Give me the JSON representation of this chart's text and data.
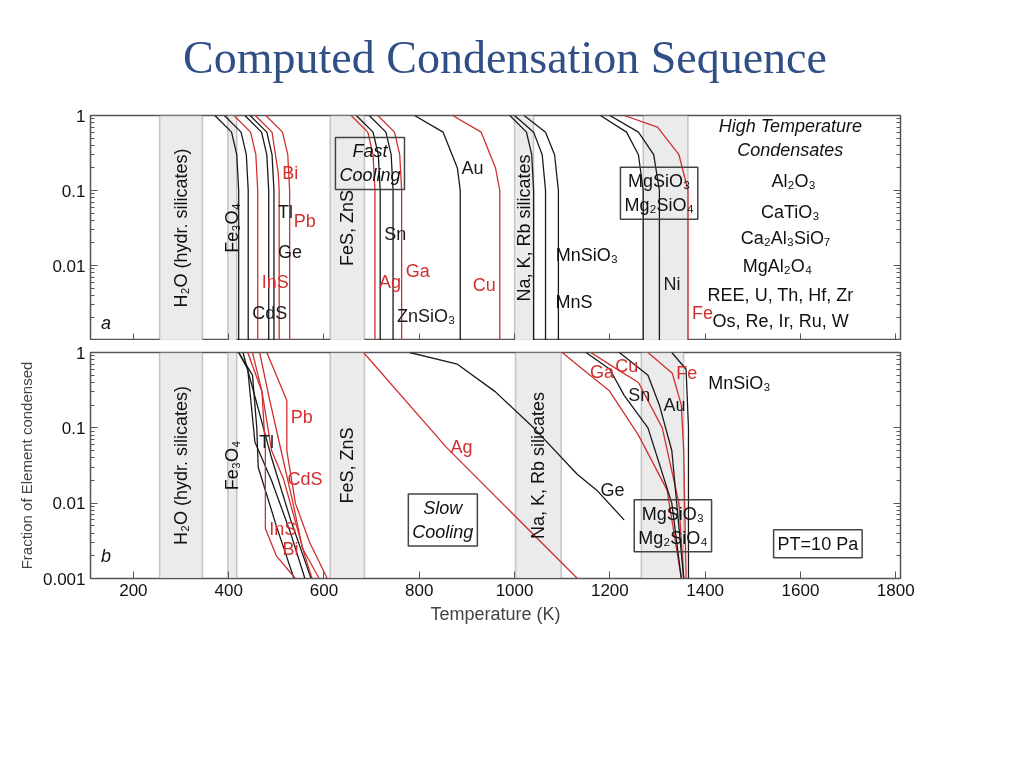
{
  "chart_data": [
    {
      "type": "line",
      "title": "Computed Condensation Sequence",
      "log": "y",
      "tick_labels": "y",
      "grid": false,
      "xlim": [
        110,
        1810
      ],
      "xticks": [
        200,
        400,
        600,
        800,
        1000,
        1200,
        1400,
        1600,
        1800
      ],
      "ylim": [
        0.001,
        1
      ],
      "yticks": [
        0.01,
        0.1,
        1
      ],
      "bands": [
        {
          "axis": "x",
          "from": 255,
          "to": 345,
          "label": "H₂O (hydr. silicates)",
          "color": "#ebebeb"
        },
        {
          "axis": "x",
          "from": 398,
          "to": 417,
          "label": "Fe₃O₄",
          "color": "#ebebeb"
        },
        {
          "axis": "x",
          "from": 613,
          "to": 685,
          "label": "FeS, ZnS",
          "color": "#ebebeb"
        },
        {
          "axis": "x",
          "from": 1000,
          "to": 1040,
          "label": "Na, K, Rb silicates",
          "color": "#ebebeb"
        },
        {
          "axis": "x",
          "from": 1270,
          "to": 1364,
          "label": null,
          "color": "#ebebeb"
        }
      ],
      "series": [
        {
          "color": "#1a1a1a",
          "x": [
            371,
            406,
            417,
            421,
            421
          ],
          "values": [
            1,
            0.6,
            0.3,
            0.1,
            0.001
          ]
        },
        {
          "color": "#1a1a1a",
          "x": [
            391,
            426,
            437,
            441,
            441
          ],
          "values": [
            1,
            0.6,
            0.3,
            0.1,
            0.001
          ]
        },
        {
          "color": "#d03030",
          "x": [
            411,
            446,
            457,
            461,
            461
          ],
          "values": [
            1,
            0.6,
            0.3,
            0.1,
            0.001
          ]
        },
        {
          "color": "#1a1a1a",
          "x": [
            434,
            469,
            480,
            484,
            484
          ],
          "values": [
            1,
            0.6,
            0.3,
            0.1,
            0.001
          ]
        },
        {
          "color": "#1a1a1a",
          "x": [
            445,
            480,
            491,
            495,
            495
          ],
          "values": [
            1,
            0.6,
            0.3,
            0.1,
            0.001
          ]
        },
        {
          "color": "#d03030",
          "x": [
            456,
            491,
            504,
            506,
            506
          ],
          "values": [
            1,
            0.6,
            0.17,
            0.1,
            0.001
          ]
        },
        {
          "color": "#d03030",
          "x": [
            478,
            513,
            524,
            528,
            528
          ],
          "values": [
            1,
            0.6,
            0.3,
            0.1,
            0.001
          ]
        },
        {
          "color": "#d03030",
          "x": [
            657,
            692,
            703,
            707,
            707
          ],
          "values": [
            1,
            0.6,
            0.3,
            0.1,
            0.001
          ]
        },
        {
          "color": "#1a1a1a",
          "x": [
            668,
            703,
            714,
            718,
            718
          ],
          "values": [
            1,
            0.6,
            0.3,
            0.1,
            0.001
          ]
        },
        {
          "color": "#1a1a1a",
          "x": [
            695,
            730,
            741,
            745,
            745
          ],
          "values": [
            1,
            0.6,
            0.3,
            0.1,
            0.001
          ]
        },
        {
          "color": "#d03030",
          "x": [
            713,
            748,
            759,
            763,
            763
          ],
          "values": [
            1,
            0.6,
            0.3,
            0.1,
            0.001
          ]
        },
        {
          "color": "#1a1a1a",
          "x": [
            790,
            850,
            880,
            886,
            886
          ],
          "values": [
            1,
            0.6,
            0.2,
            0.1,
            0.001
          ]
        },
        {
          "color": "#d03030",
          "x": [
            870,
            930,
            960,
            969,
            969
          ],
          "values": [
            1,
            0.6,
            0.2,
            0.1,
            0.001
          ]
        },
        {
          "color": "#1a1a1a",
          "x": [
            990,
            1025,
            1036,
            1040,
            1040
          ],
          "values": [
            1,
            0.6,
            0.3,
            0.1,
            0.001
          ]
        },
        {
          "color": "#1a1a1a",
          "x": [
            1000,
            1040,
            1058,
            1065,
            1065
          ],
          "values": [
            1,
            0.6,
            0.3,
            0.1,
            0.001
          ]
        },
        {
          "color": "#1a1a1a",
          "x": [
            1020,
            1065,
            1084,
            1092,
            1092
          ],
          "values": [
            1,
            0.6,
            0.3,
            0.1,
            0.001
          ]
        },
        {
          "color": "#1a1a1a",
          "x": [
            1180,
            1235,
            1260,
            1270,
            1270
          ],
          "values": [
            1,
            0.6,
            0.3,
            0.1,
            0.001
          ]
        },
        {
          "color": "#1a1a1a",
          "x": [
            1200,
            1260,
            1292,
            1304,
            1304
          ],
          "values": [
            1,
            0.6,
            0.3,
            0.1,
            0.001
          ]
        },
        {
          "color": "#d03030",
          "x": [
            1230,
            1300,
            1345,
            1364,
            1364
          ],
          "values": [
            1,
            0.7,
            0.3,
            0.1,
            0.001
          ]
        }
      ],
      "annotations": [
        {
          "text": "Bi",
          "x": 504,
          "y": 0.17
        },
        {
          "text": "Tl",
          "x": 495,
          "y": 0.052
        },
        {
          "text": "Pb",
          "x": 528,
          "y": 0.039
        },
        {
          "text": "Ge",
          "x": 495,
          "y": 0.015
        },
        {
          "text": "InS",
          "x": 461,
          "y": 0.006
        },
        {
          "text": "CdS",
          "x": 441,
          "y": 0.0023
        },
        {
          "text": "Sn",
          "x": 718,
          "y": 0.026
        },
        {
          "text": "Ag",
          "x": 707,
          "y": 0.006
        },
        {
          "text": "Ga",
          "x": 763,
          "y": 0.0085
        },
        {
          "text": "ZnSiO₃",
          "x": 745,
          "y": 0.0021
        },
        {
          "text": "Au",
          "x": 880,
          "y": 0.2
        },
        {
          "text": "Cu",
          "x": 969,
          "y": 0.0055
        },
        {
          "text": "Ni",
          "x": 1304,
          "y": 0.0056
        },
        {
          "text": "Fe",
          "x": 1364,
          "y": 0.0023
        },
        "Fast\nCooling",
        "MgSiO₃\nMg₂SiO₄",
        "MnSiO₃",
        "MnS",
        "High Temperature\nCondensates",
        "Al₂O₃",
        "CaTiO₃",
        "Ca₂Al₃SiO₇",
        "MgAl₂O₄",
        "REE, U, Th, Hf, Zr",
        "Os, Re, Ir, Ru, W",
        "a"
      ]
    },
    {
      "type": "line",
      "log": "y",
      "grid": false,
      "xlabel": "Temperature (K)",
      "ylabel": "Fraction of Element condensed",
      "xlim": [
        110,
        1810
      ],
      "xticks": [
        200,
        400,
        600,
        800,
        1000,
        1200,
        1400,
        1600,
        1800
      ],
      "ylim": [
        0.001,
        1
      ],
      "yticks": [
        0.001,
        0.01,
        0.1,
        1
      ],
      "bands": [
        {
          "axis": "x",
          "from": 255,
          "to": 345,
          "label": "H₂O (hydr. silicates)",
          "color": "#ebebeb"
        },
        {
          "axis": "x",
          "from": 398,
          "to": 417,
          "label": "Fe₃O₄",
          "color": "#ebebeb"
        },
        {
          "axis": "x",
          "from": 613,
          "to": 685,
          "label": "FeS, ZnS",
          "color": "#ebebeb"
        },
        {
          "axis": "x",
          "from": 1002,
          "to": 1098,
          "label": "Na, K, Rb silicates",
          "color": "#ebebeb"
        },
        {
          "axis": "x",
          "from": 1266,
          "to": 1355,
          "label": null,
          "color": "#ebebeb"
        }
      ],
      "series": [
        {
          "color": "#1a1a1a",
          "x": [
            421,
            440,
            455,
            490,
            530,
            560
          ],
          "values": [
            1,
            0.6,
            0.065,
            0.02,
            0.004,
            0.001
          ]
        },
        {
          "color": "#1a1a1a",
          "x": [
            421,
            450,
            459,
            462,
            500,
            537
          ],
          "values": [
            1,
            0.5,
            0.1,
            0.03,
            0.005,
            0.001
          ]
        },
        {
          "color": "#1a1a1a",
          "x": [
            430,
            460,
            490,
            530,
            573
          ],
          "values": [
            1,
            0.2,
            0.04,
            0.006,
            0.001
          ]
        },
        {
          "color": "#d03030",
          "x": [
            440,
            470,
            477,
            477,
            500,
            540
          ],
          "values": [
            1,
            0.3,
            0.05,
            0.0046,
            0.002,
            0.001
          ]
        },
        {
          "color": "#d03030",
          "x": [
            480,
            500,
            522,
            522,
            540,
            570,
            607
          ],
          "values": [
            1,
            0.5,
            0.23,
            0.05,
            0.01,
            0.003,
            0.001
          ]
        },
        {
          "color": "#d03030",
          "x": [
            450,
            470,
            490,
            515,
            560,
            575
          ],
          "values": [
            1,
            0.3,
            0.05,
            0.021,
            0.002,
            0.001
          ]
        },
        {
          "color": "#d03030",
          "x": [
            465,
            485,
            510,
            535,
            555,
            590
          ],
          "values": [
            1,
            0.25,
            0.05,
            0.01,
            0.0025,
            0.001
          ]
        },
        {
          "color": "#d03030",
          "x": [
            683,
            857,
            1132
          ],
          "values": [
            1,
            0.055,
            0.001
          ]
        },
        {
          "color": "#1a1a1a",
          "x": [
            780,
            880,
            960,
            1040,
            1132,
            1172,
            1230
          ],
          "values": [
            1,
            0.7,
            0.3,
            0.1,
            0.024,
            0.015,
            0.006
          ]
        },
        {
          "color": "#d03030",
          "x": [
            1100,
            1150,
            1199,
            1260,
            1320,
            1350
          ],
          "values": [
            1,
            0.55,
            0.31,
            0.08,
            0.015,
            0.001
          ]
        },
        {
          "color": "#1a1a1a",
          "x": [
            1150,
            1200,
            1230,
            1280,
            1330,
            1350
          ],
          "values": [
            1,
            0.6,
            0.27,
            0.1,
            0.01,
            0.001
          ]
        },
        {
          "color": "#d03030",
          "x": [
            1160,
            1203,
            1260,
            1310,
            1345,
            1355
          ],
          "values": [
            1,
            0.67,
            0.4,
            0.1,
            0.01,
            0.001
          ]
        },
        {
          "color": "#1a1a1a",
          "x": [
            1220,
            1280,
            1304,
            1330,
            1355
          ],
          "values": [
            1,
            0.5,
            0.2,
            0.05,
            0.001
          ]
        },
        {
          "color": "#d03030",
          "x": [
            1280,
            1331,
            1350,
            1355,
            1360
          ],
          "values": [
            1,
            0.53,
            0.2,
            0.05,
            0.001
          ]
        },
        {
          "color": "#1a1a1a",
          "x": [
            1330,
            1360,
            1365,
            1365
          ],
          "values": [
            1,
            0.6,
            0.1,
            0.001
          ]
        }
      ],
      "annotations": [
        {
          "text": "Pb",
          "x": 522,
          "y": 0.14
        },
        {
          "text": "Tl",
          "x": 455,
          "y": 0.065
        },
        {
          "text": "CdS",
          "x": 515,
          "y": 0.021
        },
        {
          "text": "InS",
          "x": 477,
          "y": 0.0046
        },
        {
          "text": "Bi",
          "x": 555,
          "y": 0.0025
        },
        {
          "text": "Ag",
          "x": 857,
          "y": 0.055
        },
        {
          "text": "Ge",
          "x": 1172,
          "y": 0.015
        },
        {
          "text": "Ga",
          "x": 1150,
          "y": 0.55
        },
        {
          "text": "Cu",
          "x": 1203,
          "y": 0.67
        },
        {
          "text": "Fe",
          "x": 1331,
          "y": 0.53
        },
        {
          "text": "Sn",
          "x": 1230,
          "y": 0.27
        },
        {
          "text": "Au",
          "x": 1304,
          "y": 0.2
        },
        "MnSiO₃",
        "Slow\nCooling",
        "MgSiO₃\nMg₂SiO₄",
        "PT=10 Pa",
        "b"
      ]
    }
  ]
}
